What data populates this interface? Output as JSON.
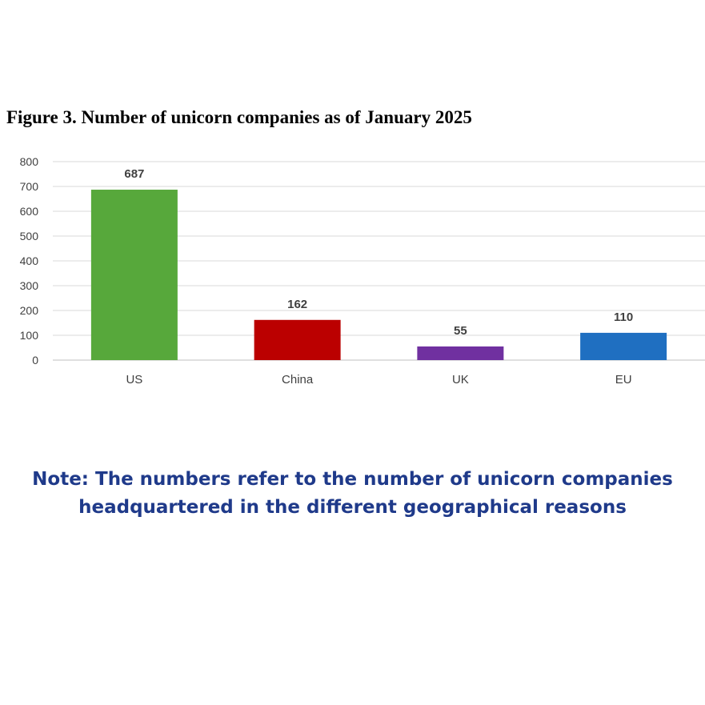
{
  "chart_data": {
    "type": "bar",
    "title": "Figure 3. Number of unicorn companies as of January 2025",
    "categories": [
      "US",
      "China",
      "UK",
      "EU"
    ],
    "values": [
      687,
      162,
      55,
      110
    ],
    "data_labels": [
      "687",
      "162",
      "55",
      "110"
    ],
    "bar_colors": [
      "#57a83b",
      "#bb0000",
      "#7030a0",
      "#1f6fc1"
    ],
    "ylim": [
      0,
      800
    ],
    "yticks": [
      0,
      100,
      200,
      300,
      400,
      500,
      600,
      700,
      800
    ],
    "ytick_labels": [
      "0",
      "100",
      "200",
      "300",
      "400",
      "500",
      "600",
      "700",
      "800"
    ],
    "grid": true,
    "legend": "none",
    "xlabel": "",
    "ylabel": ""
  },
  "note": {
    "line1": "Note: The numbers refer to the number of unicorn companies",
    "line2": "headquartered in the different geographical reasons"
  }
}
